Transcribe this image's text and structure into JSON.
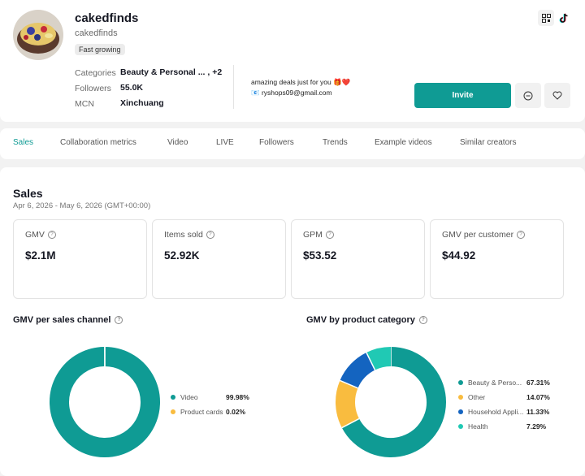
{
  "profile": {
    "username": "cakedfinds",
    "handle": "cakedfinds",
    "badge": "Fast growing",
    "categories_label": "Categories",
    "categories_value": "Beauty & Personal ... , +2",
    "followers_label": "Followers",
    "followers_value": "55.0K",
    "mcn_label": "MCN",
    "mcn_value": "Xinchuang",
    "bio": "amazing deals just for you 🎁❤️",
    "email": "📧 ryshops09@gmail.com",
    "invite_label": "Invite",
    "icons": [
      "qr-code-icon",
      "tiktok-icon",
      "message-icon",
      "heart-icon"
    ]
  },
  "tabs": [
    {
      "label": "Sales",
      "active": true
    },
    {
      "label": "Collaboration metrics"
    },
    {
      "label": "Video"
    },
    {
      "label": "LIVE"
    },
    {
      "label": "Followers"
    },
    {
      "label": "Trends"
    },
    {
      "label": "Example videos"
    },
    {
      "label": "Similar creators"
    }
  ],
  "sales": {
    "title": "Sales",
    "date_range": "Apr 6, 2026 - May 6, 2026 (GMT+00:00)",
    "metrics": [
      {
        "label": "GMV",
        "value": "$2.1M"
      },
      {
        "label": "Items sold",
        "value": "52.92K"
      },
      {
        "label": "GPM",
        "value": "$53.52"
      },
      {
        "label": "GMV per customer",
        "value": "$44.92"
      }
    ]
  },
  "chart_data": [
    {
      "type": "pie",
      "title": "GMV per sales channel",
      "categories": [
        "Video",
        "Product cards"
      ],
      "values": [
        99.98,
        0.02
      ],
      "labels": [
        "99.98%",
        "0.02%"
      ],
      "colors": [
        "#0f9b94",
        "#f9bc3f"
      ],
      "legend": "right"
    },
    {
      "type": "pie",
      "title": "GMV by product category",
      "categories": [
        "Beauty & Perso...",
        "Other",
        "Household Appli...",
        "Health"
      ],
      "values": [
        67.31,
        14.07,
        11.33,
        7.29
      ],
      "labels": [
        "67.31%",
        "14.07%",
        "11.33%",
        "7.29%"
      ],
      "colors": [
        "#0f9b94",
        "#f9bc3f",
        "#1464c0",
        "#20c9b4"
      ],
      "legend": "right"
    }
  ]
}
